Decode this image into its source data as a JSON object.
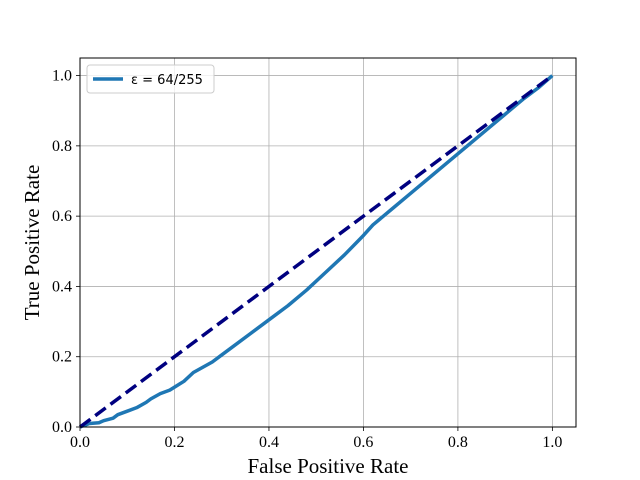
{
  "chart_data": {
    "type": "line",
    "title": "",
    "xlabel": "False Positive Rate",
    "ylabel": "True Positive Rate",
    "xlim": [
      0.0,
      1.05
    ],
    "ylim": [
      0.0,
      1.05
    ],
    "x_ticks": [
      "0.0",
      "0.2",
      "0.4",
      "0.6",
      "0.8",
      "1.0"
    ],
    "y_ticks": [
      "0.0",
      "0.2",
      "0.4",
      "0.6",
      "0.8",
      "1.0"
    ],
    "grid": true,
    "legend_position": "upper-left",
    "series": [
      {
        "name": "ε = 64/255",
        "color": "#1f77b4",
        "style": "solid",
        "x": [
          0.0,
          0.02,
          0.04,
          0.05,
          0.07,
          0.08,
          0.09,
          0.1,
          0.12,
          0.14,
          0.15,
          0.17,
          0.19,
          0.22,
          0.24,
          0.26,
          0.28,
          0.3,
          0.32,
          0.36,
          0.4,
          0.44,
          0.48,
          0.52,
          0.56,
          0.6,
          0.62,
          0.66,
          0.7,
          0.74,
          0.78,
          0.82,
          0.86,
          0.9,
          0.94,
          0.97,
          1.0
        ],
        "y": [
          0.0,
          0.01,
          0.012,
          0.018,
          0.025,
          0.035,
          0.04,
          0.045,
          0.055,
          0.07,
          0.08,
          0.095,
          0.105,
          0.13,
          0.155,
          0.17,
          0.185,
          0.205,
          0.225,
          0.265,
          0.305,
          0.345,
          0.39,
          0.44,
          0.49,
          0.545,
          0.575,
          0.62,
          0.665,
          0.71,
          0.755,
          0.8,
          0.845,
          0.89,
          0.935,
          0.965,
          1.0
        ]
      },
      {
        "name": "",
        "color": "#000080",
        "style": "dashed",
        "x": [
          0.0,
          1.0
        ],
        "y": [
          0.0,
          1.0
        ]
      }
    ],
    "legend_label": "ε = 64/255"
  }
}
